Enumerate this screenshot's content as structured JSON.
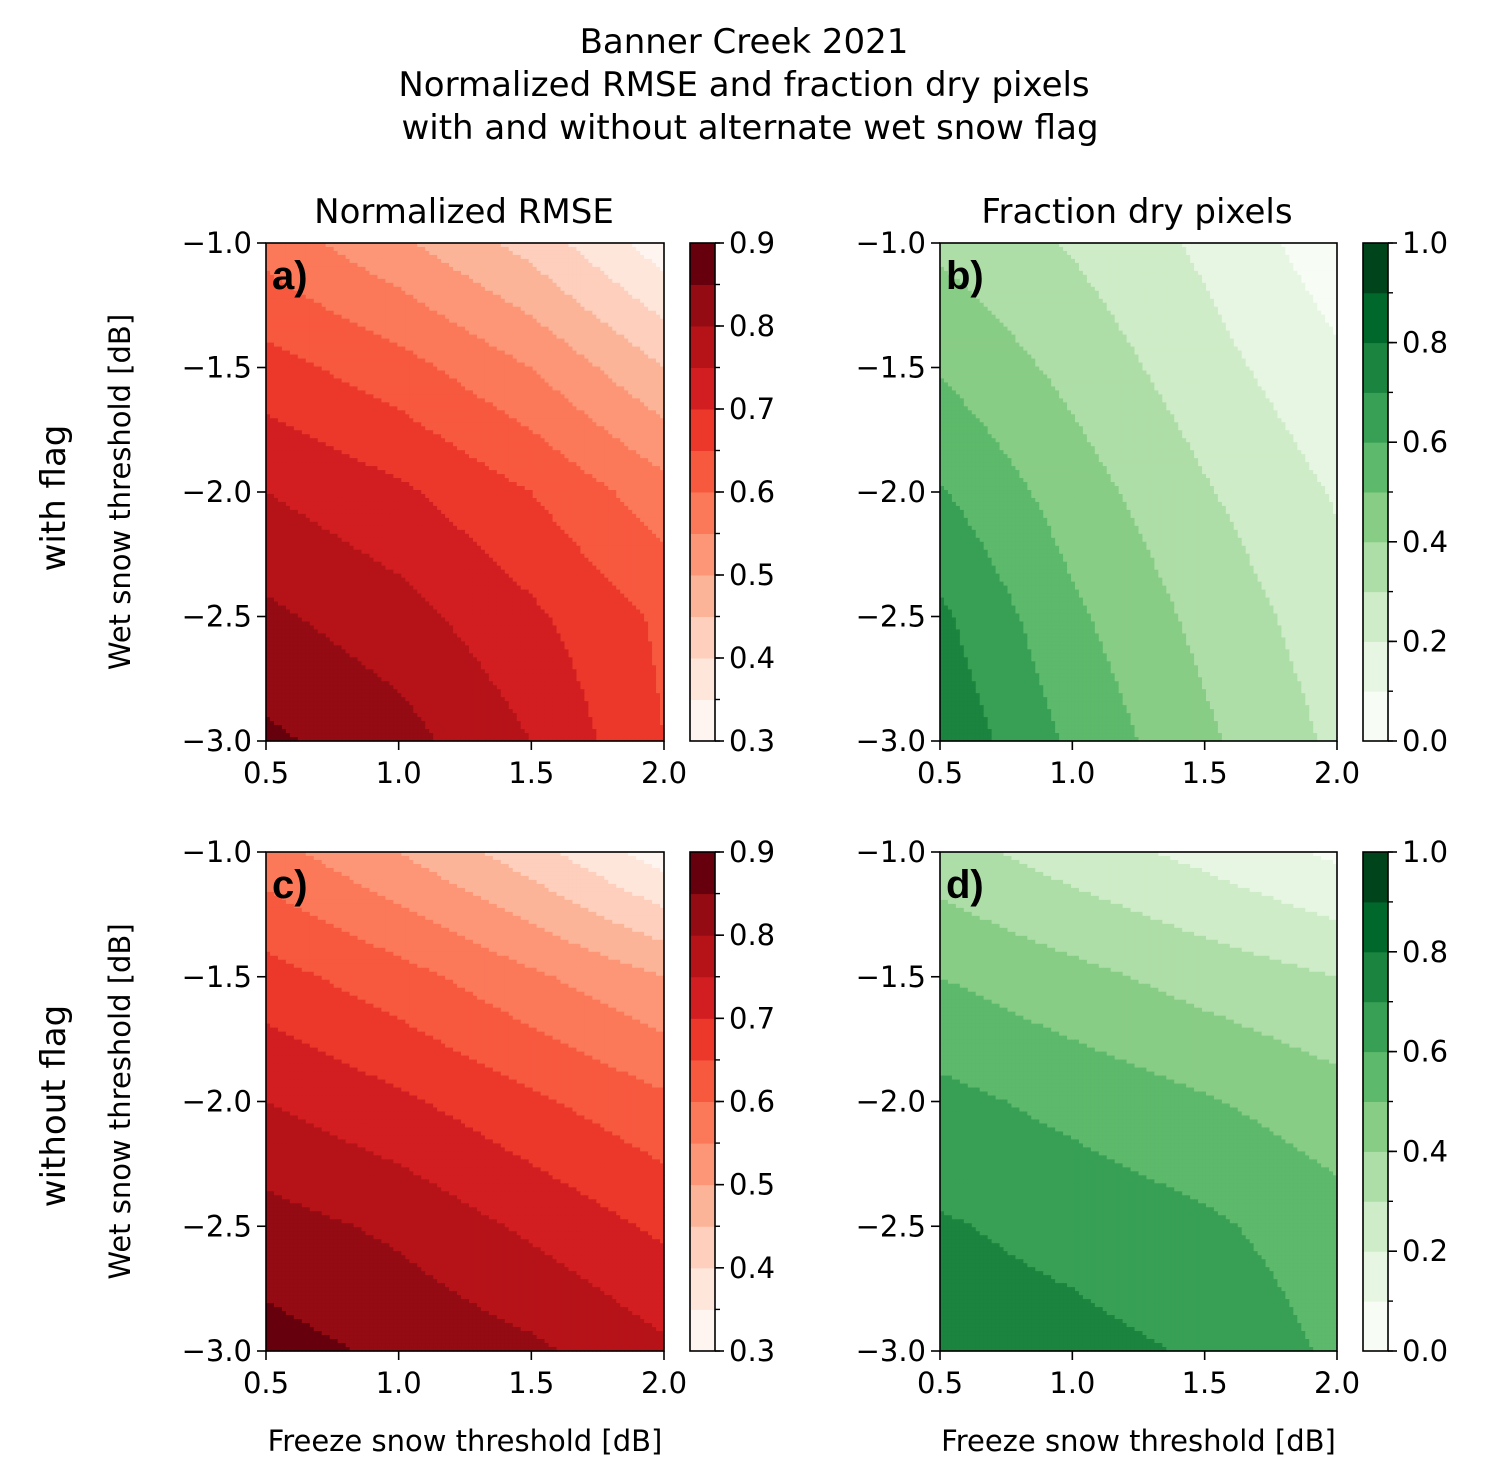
{
  "title_lines": [
    "Banner Creek 2021",
    "Normalized RMSE and fraction dry pixels",
    "with and without alternate wet snow flag"
  ],
  "column_titles": [
    "Normalized RMSE",
    "Fraction dry pixels"
  ],
  "row_labels": [
    "with flag",
    "without flag"
  ],
  "chart_data": [
    {
      "type": "heatmap",
      "panel": "a)",
      "row": "with flag",
      "column": "Normalized RMSE",
      "colormap": "Reds",
      "xlabel": "",
      "ylabel": "Wet snow threshold [dB]",
      "xlim": [
        0.5,
        2.0
      ],
      "ylim": [
        -3.0,
        -1.0
      ],
      "xticks": [
        "0.5",
        "1.0",
        "1.5",
        "2.0"
      ],
      "yticks": [
        "−3.0",
        "−2.5",
        "−2.0",
        "−1.5",
        "−1.0"
      ],
      "levels": [
        0.3,
        0.35,
        0.4,
        0.45,
        0.5,
        0.55,
        0.6,
        0.65,
        0.7,
        0.75,
        0.8,
        0.85,
        0.9
      ],
      "colorbar_ticks": [
        "0.3",
        "0.4",
        "0.5",
        "0.6",
        "0.7",
        "0.8",
        "0.9"
      ],
      "x": [
        0.5,
        1.0,
        1.5,
        2.0
      ],
      "y": [
        -3.0,
        -2.5,
        -2.0,
        -1.5,
        -1.0
      ],
      "z": [
        [
          0.86,
          0.82,
          0.75,
          0.65
        ],
        [
          0.81,
          0.77,
          0.71,
          0.64
        ],
        [
          0.75,
          0.71,
          0.65,
          0.57
        ],
        [
          0.67,
          0.62,
          0.55,
          0.45
        ],
        [
          0.58,
          0.51,
          0.43,
          0.32
        ]
      ]
    },
    {
      "type": "heatmap",
      "panel": "b)",
      "row": "with flag",
      "column": "Fraction dry pixels",
      "colormap": "Greens",
      "xlabel": "",
      "ylabel": "",
      "xlim": [
        0.5,
        2.0
      ],
      "ylim": [
        -3.0,
        -1.0
      ],
      "xticks": [
        "0.5",
        "1.0",
        "1.5",
        "2.0"
      ],
      "yticks": [
        "−3.0",
        "−2.5",
        "−2.0",
        "−1.5",
        "−1.0"
      ],
      "levels": [
        0.0,
        0.1,
        0.2,
        0.3,
        0.4,
        0.5,
        0.6,
        0.7,
        0.8,
        0.9,
        1.0
      ],
      "colorbar_ticks": [
        "0.0",
        "0.2",
        "0.4",
        "0.6",
        "0.8",
        "1.0"
      ],
      "x": [
        0.5,
        1.0,
        1.5,
        2.0
      ],
      "y": [
        -3.0,
        -2.5,
        -2.0,
        -1.5,
        -1.0
      ],
      "z": [
        [
          0.78,
          0.58,
          0.42,
          0.28
        ],
        [
          0.72,
          0.52,
          0.37,
          0.24
        ],
        [
          0.61,
          0.45,
          0.31,
          0.19
        ],
        [
          0.49,
          0.37,
          0.24,
          0.12
        ],
        [
          0.38,
          0.29,
          0.18,
          0.04
        ]
      ]
    },
    {
      "type": "heatmap",
      "panel": "c)",
      "row": "without flag",
      "column": "Normalized RMSE",
      "colormap": "Reds",
      "xlabel": "Freeze snow threshold [dB]",
      "ylabel": "Wet snow threshold [dB]",
      "xlim": [
        0.5,
        2.0
      ],
      "ylim": [
        -3.0,
        -1.0
      ],
      "xticks": [
        "0.5",
        "1.0",
        "1.5",
        "2.0"
      ],
      "yticks": [
        "−3.0",
        "−2.5",
        "−2.0",
        "−1.5",
        "−1.0"
      ],
      "levels": [
        0.3,
        0.35,
        0.4,
        0.45,
        0.5,
        0.55,
        0.6,
        0.65,
        0.7,
        0.75,
        0.8,
        0.85,
        0.9
      ],
      "colorbar_ticks": [
        "0.3",
        "0.4",
        "0.5",
        "0.6",
        "0.7",
        "0.8",
        "0.9"
      ],
      "x": [
        0.5,
        1.0,
        1.5,
        2.0
      ],
      "y": [
        -3.0,
        -2.5,
        -2.0,
        -1.5,
        -1.0
      ],
      "z": [
        [
          0.87,
          0.84,
          0.81,
          0.76
        ],
        [
          0.82,
          0.79,
          0.74,
          0.69
        ],
        [
          0.75,
          0.71,
          0.66,
          0.61
        ],
        [
          0.67,
          0.62,
          0.56,
          0.5
        ],
        [
          0.57,
          0.5,
          0.42,
          0.32
        ]
      ]
    },
    {
      "type": "heatmap",
      "panel": "d)",
      "row": "without flag",
      "column": "Fraction dry pixels",
      "colormap": "Greens",
      "xlabel": "Freeze snow threshold [dB]",
      "ylabel": "",
      "xlim": [
        0.5,
        2.0
      ],
      "ylim": [
        -3.0,
        -1.0
      ],
      "xticks": [
        "0.5",
        "1.0",
        "1.5",
        "2.0"
      ],
      "yticks": [
        "−3.0",
        "−2.5",
        "−2.0",
        "−1.5",
        "−1.0"
      ],
      "levels": [
        0.0,
        0.1,
        0.2,
        0.3,
        0.4,
        0.5,
        0.6,
        0.7,
        0.8,
        0.9,
        1.0
      ],
      "colorbar_ticks": [
        "0.0",
        "0.2",
        "0.4",
        "0.6",
        "0.8",
        "1.0"
      ],
      "x": [
        0.5,
        1.0,
        1.5,
        2.0
      ],
      "y": [
        -3.0,
        -2.5,
        -2.0,
        -1.5,
        -1.0
      ],
      "z": [
        [
          0.75,
          0.73,
          0.69,
          0.58
        ],
        [
          0.71,
          0.67,
          0.62,
          0.54
        ],
        [
          0.63,
          0.57,
          0.51,
          0.44
        ],
        [
          0.5,
          0.43,
          0.36,
          0.3
        ],
        [
          0.34,
          0.25,
          0.17,
          0.08
        ]
      ]
    }
  ],
  "colormaps": {
    "Reds": [
      "#fff5f0",
      "#fee0d2",
      "#fcbba1",
      "#fc9272",
      "#fb6a4a",
      "#ef3b2c",
      "#cb181d",
      "#a50f15",
      "#67000d"
    ],
    "Greens": [
      "#f7fcf5",
      "#e5f5e0",
      "#c7e9c0",
      "#a1d99b",
      "#74c476",
      "#41ab5d",
      "#238b45",
      "#006d2c",
      "#00441b"
    ]
  }
}
